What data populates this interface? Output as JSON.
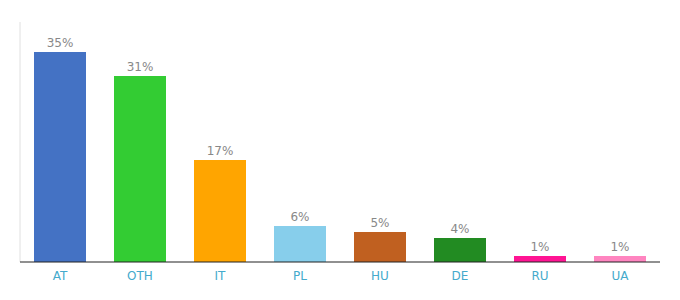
{
  "chart_data": {
    "type": "bar",
    "categories": [
      "AT",
      "OTH",
      "IT",
      "PL",
      "HU",
      "DE",
      "RU",
      "UA"
    ],
    "values": [
      35,
      31,
      17,
      6,
      5,
      4,
      1,
      1
    ],
    "value_labels": [
      "35%",
      "31%",
      "17%",
      "6%",
      "5%",
      "4%",
      "1%",
      "1%"
    ],
    "colors": [
      "#4472C4",
      "#33CC33",
      "#FFA500",
      "#87CEEB",
      "#C06020",
      "#228B22",
      "#FF1493",
      "#FF85C0"
    ],
    "ylim": [
      0,
      40
    ],
    "data_labels": true,
    "tick_labels": "x",
    "grid": false
  }
}
